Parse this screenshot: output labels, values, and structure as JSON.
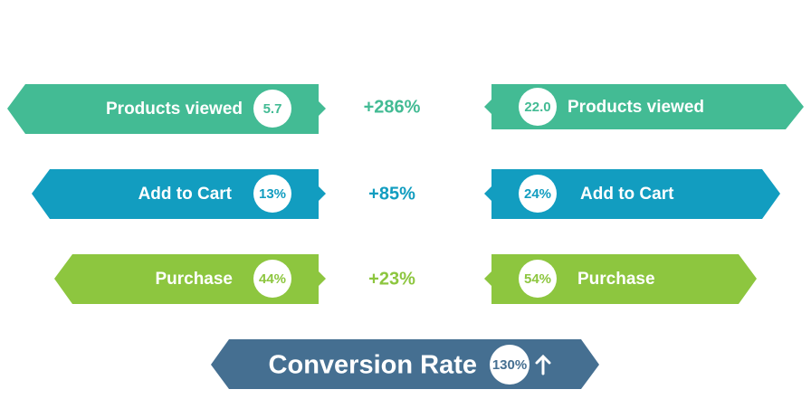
{
  "left": [
    {
      "label": "Products viewed",
      "value": "5.7"
    },
    {
      "label": "Add to Cart",
      "value": "13%"
    },
    {
      "label": "Purchase",
      "value": "44%"
    }
  ],
  "changes": [
    "+286%",
    "+85%",
    "+23%"
  ],
  "right": [
    {
      "label": "Products viewed",
      "value": "22.0"
    },
    {
      "label": "Add to Cart",
      "value": "24%"
    },
    {
      "label": "Purchase",
      "value": "54%"
    }
  ],
  "footer": {
    "label": "Conversion Rate",
    "value": "130%"
  }
}
